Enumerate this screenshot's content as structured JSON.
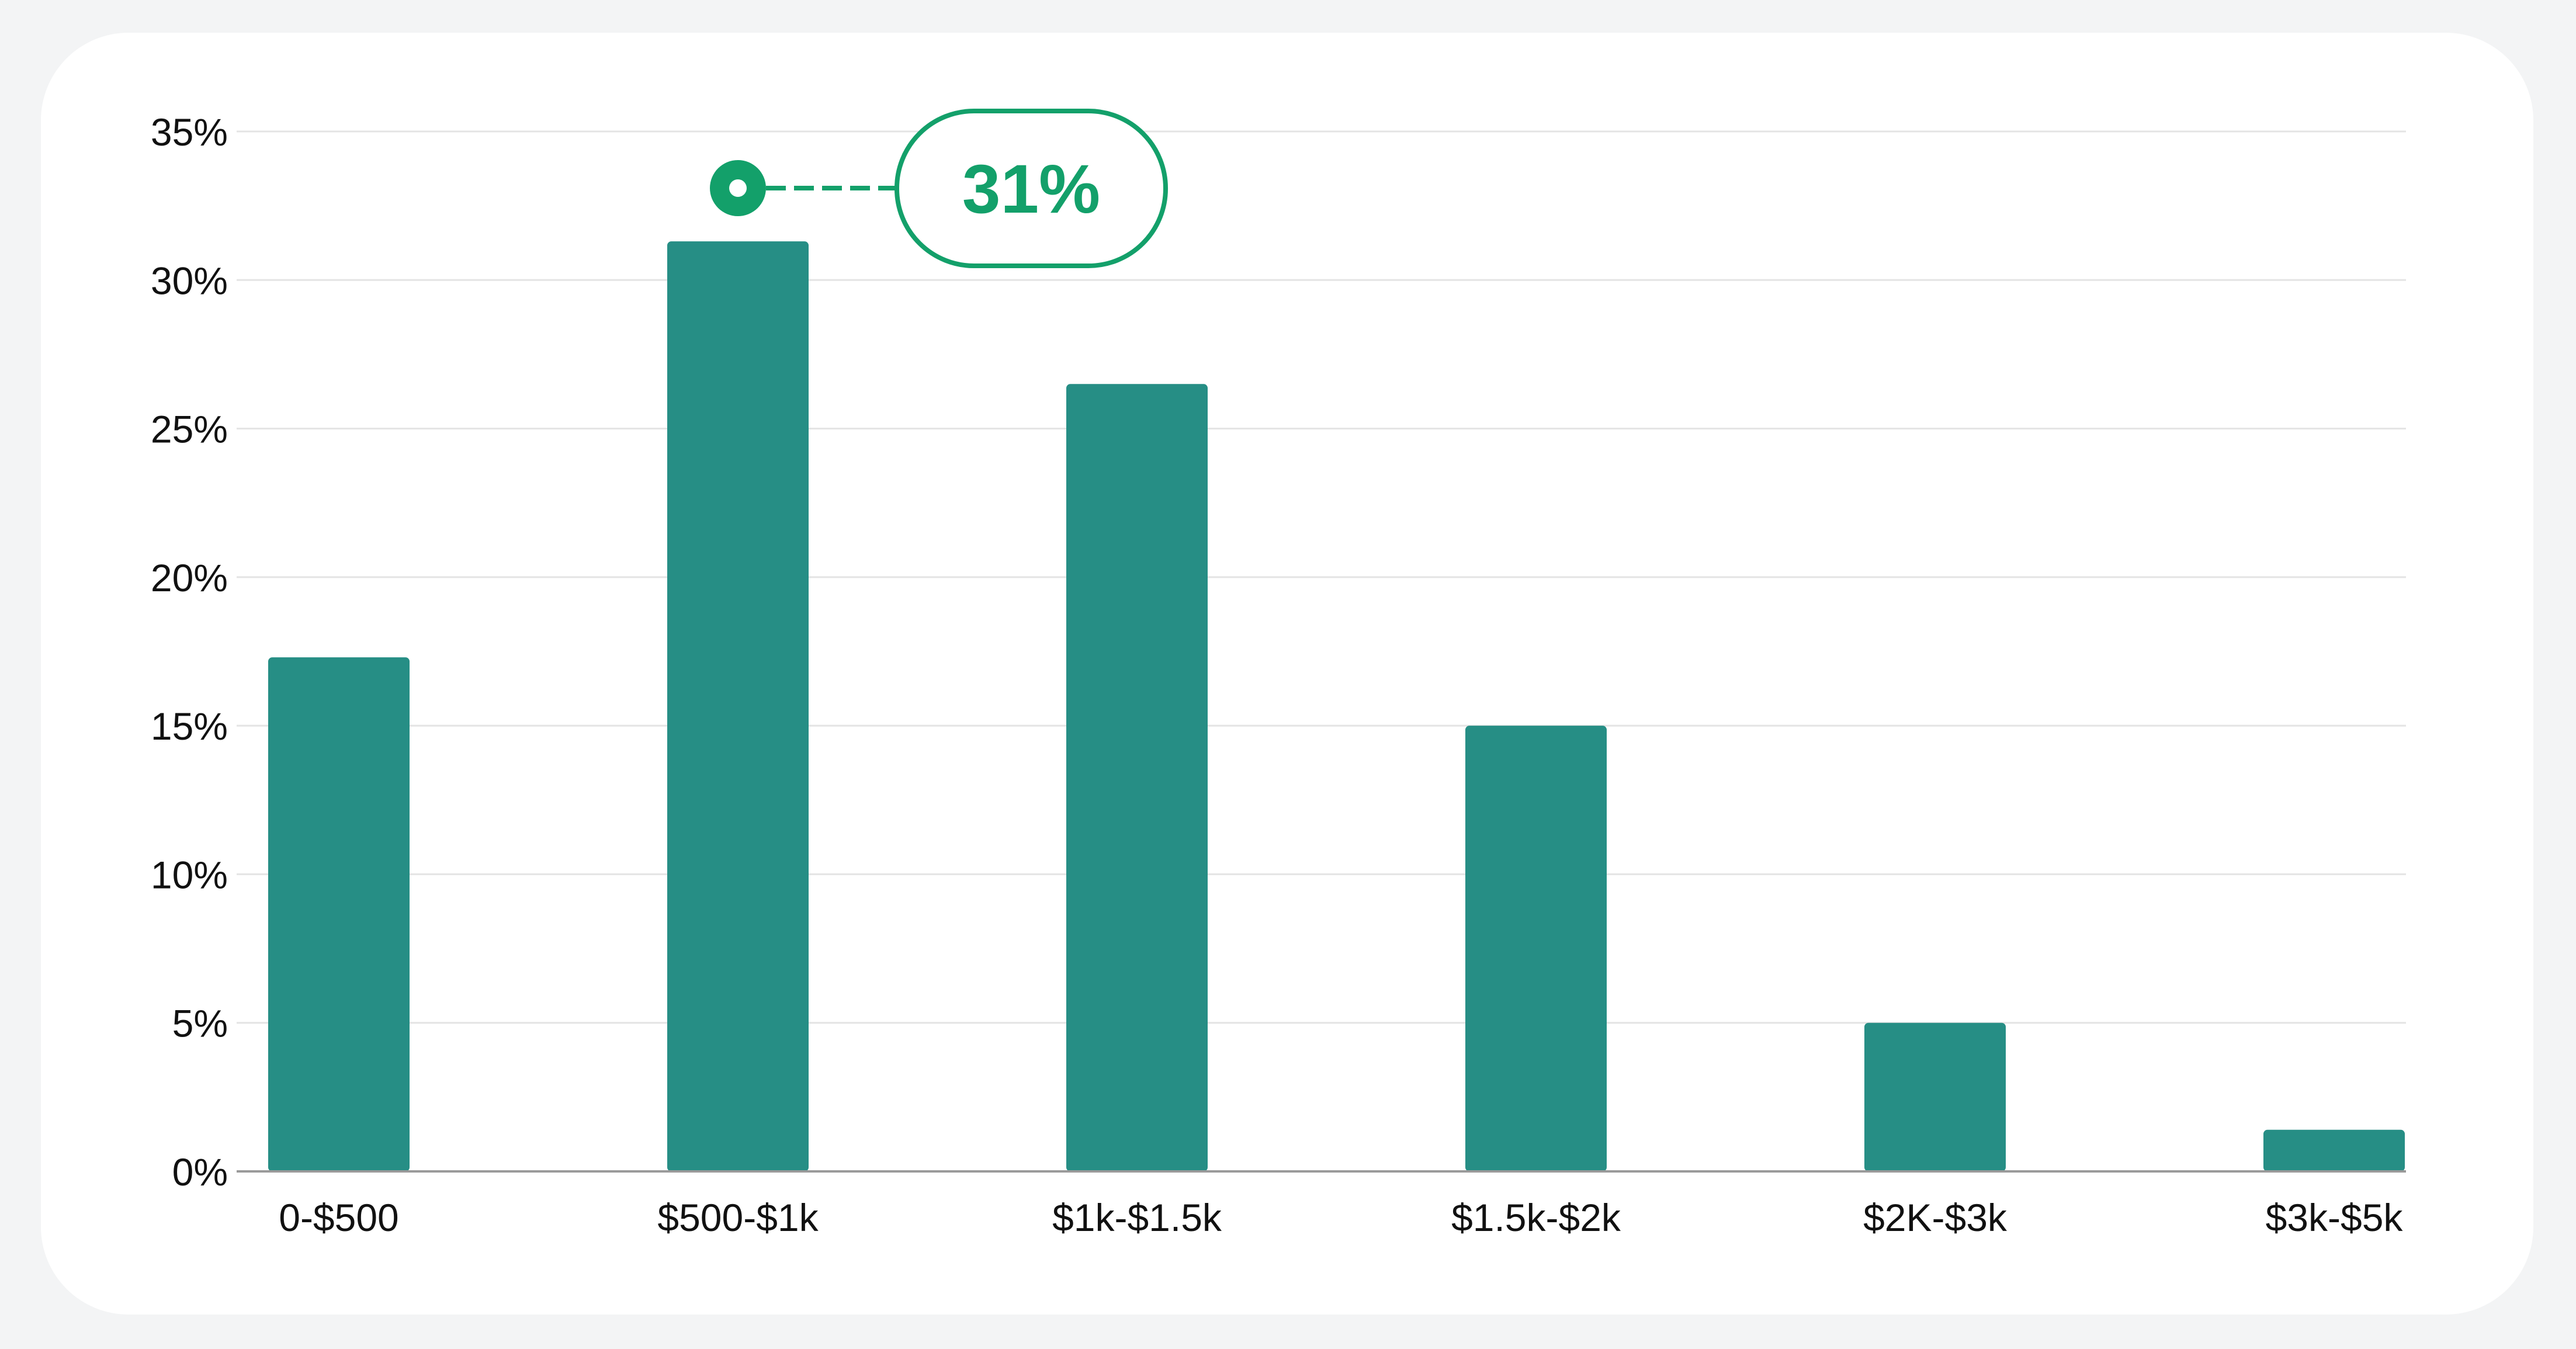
{
  "chart_data": {
    "type": "bar",
    "categories": [
      "0-$500",
      "$500-$1k",
      "$1k-$1.5k",
      "$1.5k-$2k",
      "$2K-$3k",
      "$3k-$5k"
    ],
    "values": [
      17.3,
      31.3,
      26.5,
      15.0,
      5.0,
      1.4
    ],
    "ylim": [
      0,
      35
    ],
    "yticks": [
      "0%",
      "5%",
      "10%",
      "15%",
      "20%",
      "25%",
      "30%",
      "35%"
    ],
    "ytick_values": [
      0,
      5,
      10,
      15,
      20,
      25,
      30,
      35
    ],
    "grid": true,
    "colors": {
      "bar": "#268e85",
      "callout": "#13a06a",
      "grid": "#e4e4e4",
      "axis": "#9a9a9a"
    },
    "annotation": {
      "category_index": 1,
      "text": "31%"
    }
  }
}
